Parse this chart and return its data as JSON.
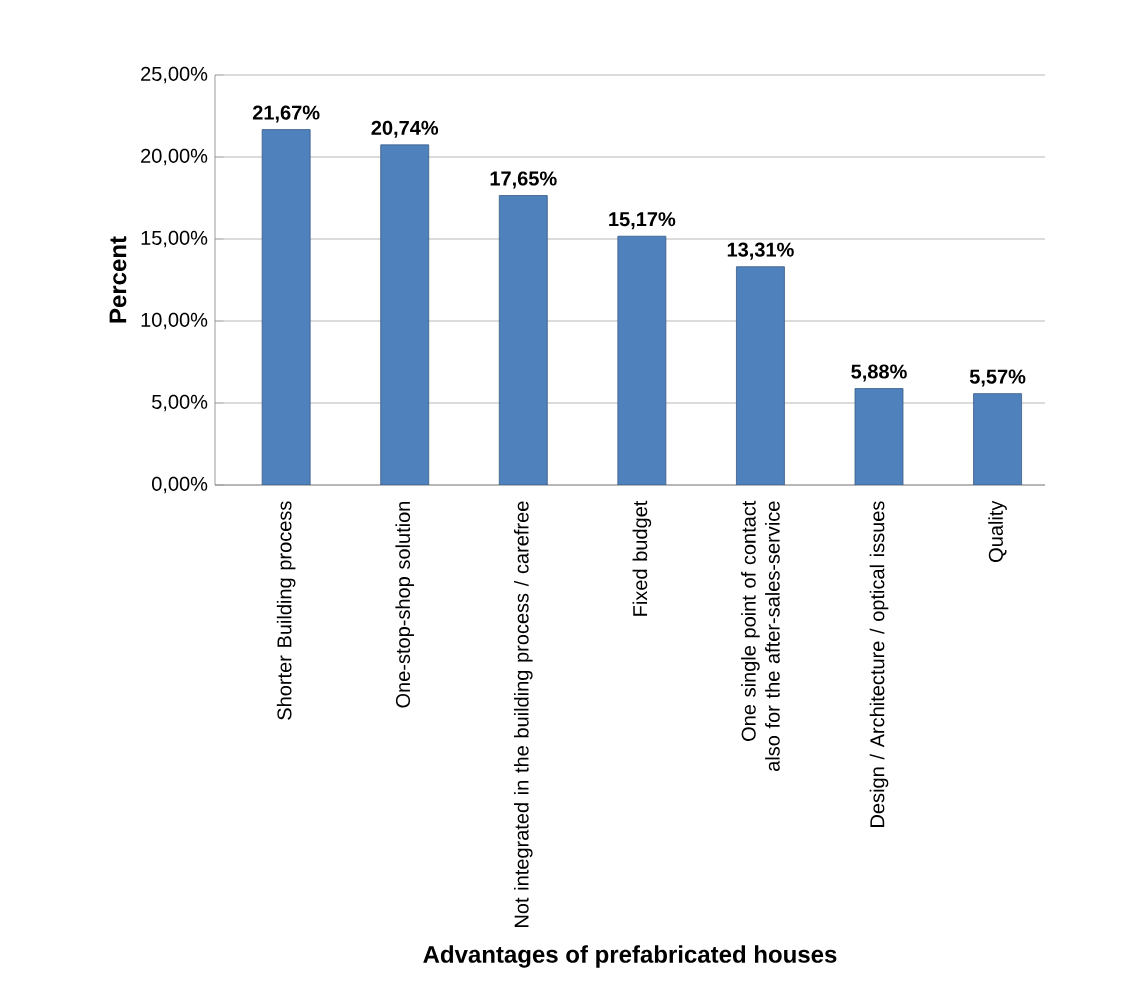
{
  "chart_data": {
    "type": "bar",
    "xlabel": "Advantages of prefabricated houses",
    "ylabel": "Percent",
    "categories": [
      "Shorter Building process",
      "One-stop-shop solution",
      "Not integrated in the building process / carefree",
      "Fixed budget",
      "One single point of contact also for the after-sales-service",
      "Design / Architecture / optical issues",
      "Quality"
    ],
    "values": [
      21.67,
      20.74,
      17.65,
      15.17,
      13.31,
      5.88,
      5.57
    ],
    "value_labels": [
      "21,67%",
      "20,74%",
      "17,65%",
      "15,17%",
      "13,31%",
      "5,88%",
      "5,57%"
    ],
    "color": "#4f81bd",
    "ylim": [
      0,
      25
    ],
    "yticks": [
      {
        "value": 0,
        "label": "0,00%"
      },
      {
        "value": 5,
        "label": "5,00%"
      },
      {
        "value": 10,
        "label": "10,00%"
      },
      {
        "value": 15,
        "label": "15,00%"
      },
      {
        "value": 20,
        "label": "20,00%"
      },
      {
        "value": 25,
        "label": "25,00%"
      }
    ],
    "grid": "y"
  }
}
